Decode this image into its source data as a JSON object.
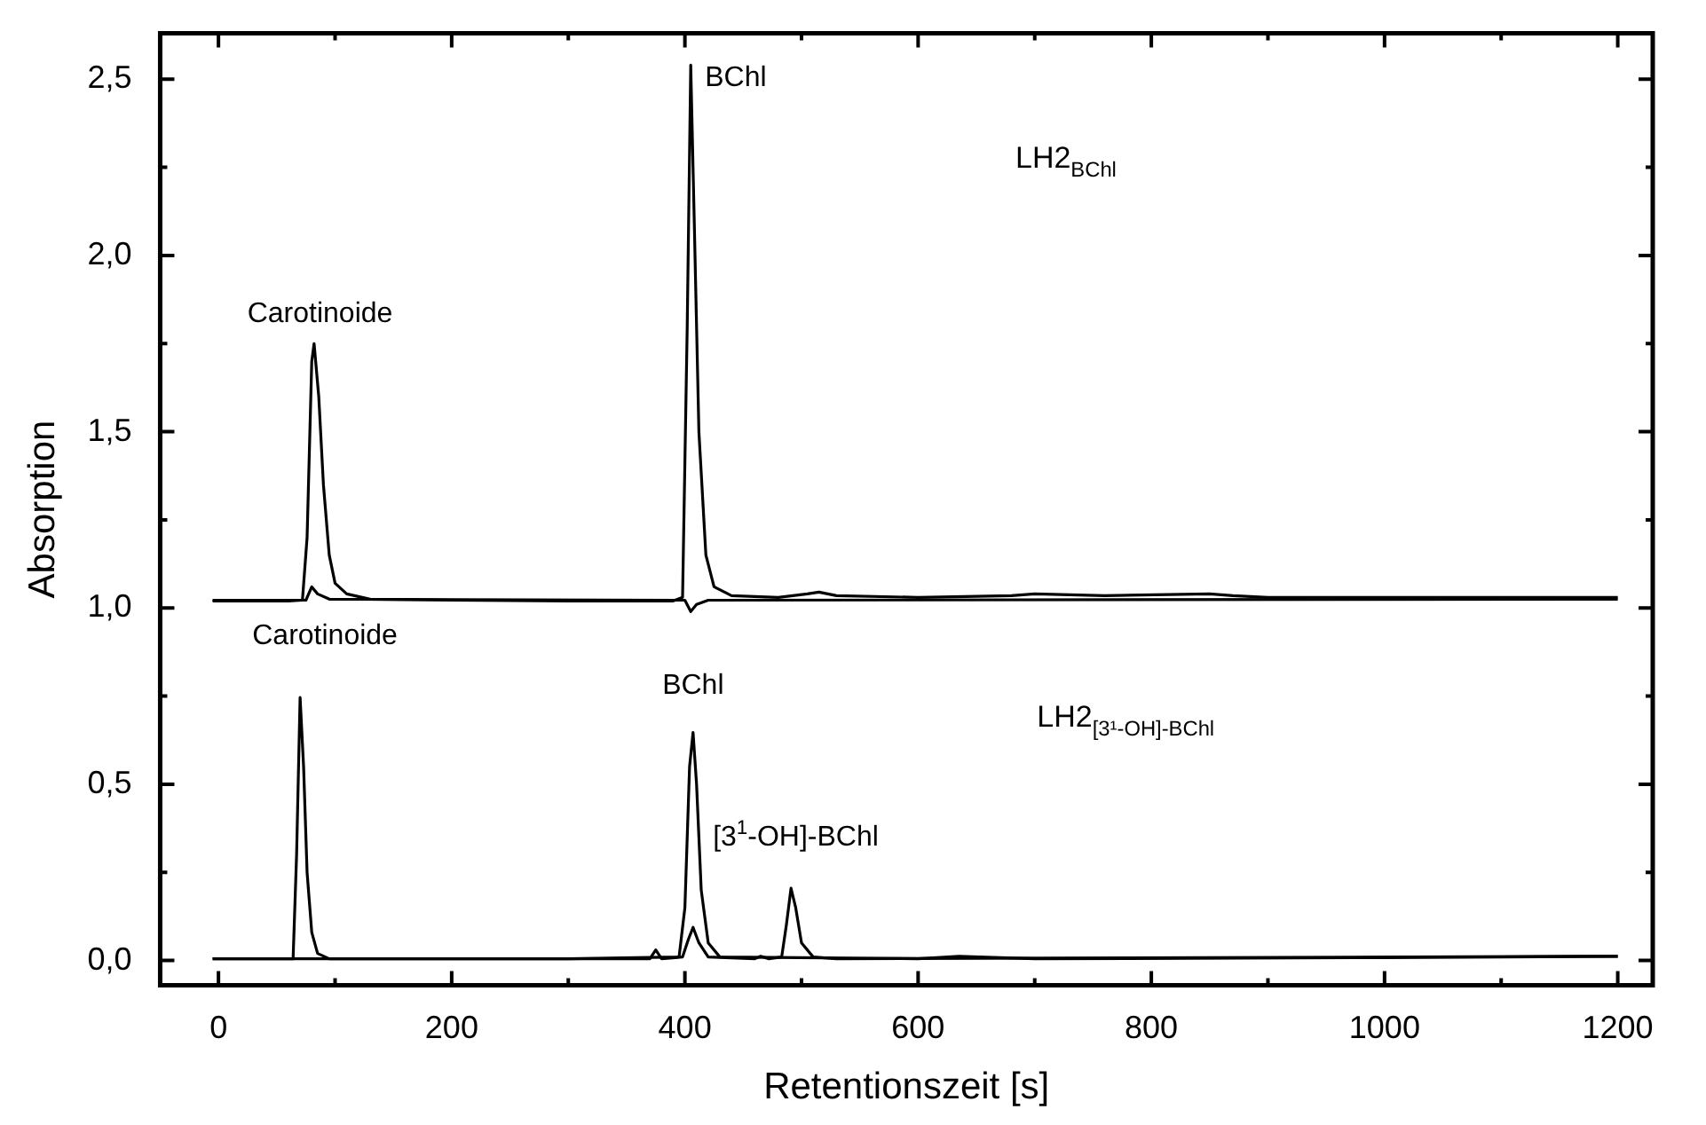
{
  "chart_data": {
    "type": "line",
    "xlabel": "Retentionszeit [s]",
    "ylabel": "Absorption",
    "xlim": [
      -50,
      1230
    ],
    "ylim": [
      -0.07,
      2.63
    ],
    "xticks": [
      0,
      {
        "value": 100,
        "label": null
      },
      200,
      {
        "value": 300,
        "label": null
      },
      400,
      {
        "value": 500,
        "label": null
      },
      600,
      {
        "value": 700,
        "label": null
      },
      800,
      {
        "value": 900,
        "label": null
      },
      1000,
      {
        "value": 1100,
        "label": null
      },
      1200
    ],
    "yticks": [
      {
        "value": 0,
        "label": "0,0"
      },
      {
        "value": 0.25,
        "label": null
      },
      {
        "value": 0.5,
        "label": "0,5"
      },
      {
        "value": 0.75,
        "label": null
      },
      {
        "value": 1,
        "label": "1,0"
      },
      {
        "value": 1.25,
        "label": null
      },
      {
        "value": 1.5,
        "label": "1,5"
      },
      {
        "value": 1.75,
        "label": null
      },
      {
        "value": 2,
        "label": "2,0"
      },
      {
        "value": 2.25,
        "label": null
      },
      {
        "value": 2.5,
        "label": "2,5"
      }
    ],
    "grid": false,
    "marker": "none",
    "line_style": "solid",
    "series": [
      {
        "color": "#000000",
        "x": [
          -5,
          60,
          72,
          76,
          80,
          82,
          86,
          90,
          95,
          100,
          110,
          130,
          200,
          300,
          390,
          398,
          402,
          405,
          408,
          412,
          418,
          425,
          440,
          480,
          505,
          515,
          530,
          600,
          680,
          700,
          760,
          850,
          870,
          900,
          1000,
          1100,
          1200
        ],
        "values": [
          1.02,
          1.02,
          1.022,
          1.2,
          1.7,
          1.75,
          1.6,
          1.35,
          1.15,
          1.07,
          1.04,
          1.025,
          1.022,
          1.02,
          1.02,
          1.03,
          1.8,
          2.54,
          2.1,
          1.5,
          1.15,
          1.06,
          1.035,
          1.03,
          1.04,
          1.045,
          1.035,
          1.03,
          1.035,
          1.04,
          1.035,
          1.04,
          1.035,
          1.03,
          1.03,
          1.03,
          1.03
        ]
      },
      {
        "color": "#000000",
        "x": [
          -5,
          75,
          80,
          85,
          95,
          400,
          405,
          410,
          420,
          1200
        ],
        "values": [
          1.022,
          1.022,
          1.06,
          1.04,
          1.025,
          1.022,
          0.99,
          1.01,
          1.022,
          1.025
        ]
      },
      {
        "color": "#000000",
        "x": [
          -5,
          50,
          64,
          67,
          70,
          73,
          76,
          80,
          85,
          95,
          150,
          300,
          395,
          400,
          404,
          407,
          410,
          414,
          420,
          430,
          600,
          635,
          700,
          1000,
          1200
        ],
        "values": [
          0.005,
          0.005,
          0.005,
          0.3,
          0.746,
          0.55,
          0.25,
          0.08,
          0.02,
          0.005,
          0.005,
          0.005,
          0.01,
          0.15,
          0.55,
          0.647,
          0.5,
          0.2,
          0.05,
          0.01,
          0.005,
          0.012,
          0.005,
          0.008,
          0.012
        ]
      },
      {
        "color": "#000000",
        "x": [
          -5,
          370,
          375,
          380,
          398,
          403,
          407,
          412,
          420,
          460,
          465,
          472,
          483,
          487,
          491,
          495,
          500,
          510,
          530,
          1200
        ],
        "values": [
          0.005,
          0.005,
          0.03,
          0.005,
          0.01,
          0.06,
          0.094,
          0.05,
          0.01,
          0.005,
          0.012,
          0.005,
          0.01,
          0.1,
          0.205,
          0.15,
          0.05,
          0.01,
          0.005,
          0.012
        ]
      }
    ],
    "annotations": [
      {
        "text": "Carotinoide",
        "x": 81,
        "y": 1.75
      },
      {
        "text": "BChl",
        "x": 405,
        "y": 2.54
      },
      "LH2$_{BChl}$",
      {
        "text": "Carotinoide",
        "x": 70,
        "y": 0.746
      },
      {
        "text": "BChl",
        "x": 407,
        "y": 0.647
      },
      {
        "text": "[3$^{1}$-OH]-BChl",
        "x": 491,
        "y": 0.205
      },
      "LH2$_{[3¹-OH]-BChl}$"
    ]
  }
}
